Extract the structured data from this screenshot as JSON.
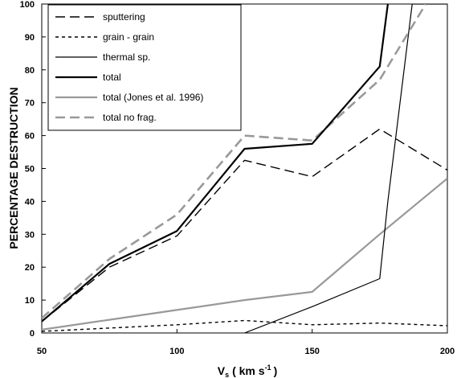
{
  "chart_data": {
    "type": "line",
    "title": "",
    "xlabel": "V",
    "xlabel_sub": "s",
    "xlabel_units": "( km s",
    "xlabel_sup": "-1",
    "xlabel_close": ")",
    "ylabel": "PERCENTAGE DESTRUCTION",
    "xlim": [
      50,
      200
    ],
    "ylim": [
      0,
      100
    ],
    "x_ticks": [
      50,
      100,
      150,
      200
    ],
    "y_ticks": [
      0,
      10,
      20,
      30,
      40,
      50,
      60,
      70,
      80,
      90,
      100
    ],
    "grid": false,
    "legend_position": "top-left",
    "series": [
      {
        "name": "sputtering",
        "color": "#000000",
        "style": "long-dash",
        "width": 1.4,
        "x": [
          50,
          75,
          100,
          125,
          150,
          175,
          200
        ],
        "y": [
          3.5,
          20,
          29.5,
          52.5,
          47.5,
          62,
          49.5
        ]
      },
      {
        "name": "grain - grain",
        "color": "#000000",
        "style": "short-dash",
        "width": 1.4,
        "x": [
          50,
          75,
          100,
          125,
          150,
          175,
          200
        ],
        "y": [
          0.5,
          1.5,
          2.5,
          3.8,
          2.5,
          3,
          2.2
        ]
      },
      {
        "name": "thermal sp.",
        "color": "#000000",
        "style": "solid",
        "width": 1.2,
        "x": [
          125,
          150,
          175,
          178,
          187,
          200
        ],
        "y": [
          0,
          8,
          16.5,
          40,
          100,
          100
        ]
      },
      {
        "name": "total",
        "color": "#000000",
        "style": "solid",
        "width": 2.2,
        "x": [
          50,
          75,
          100,
          125,
          150,
          175,
          178
        ],
        "y": [
          3.5,
          21,
          31,
          56,
          57.5,
          81,
          100
        ]
      },
      {
        "name": "total (Jones et al. 1996)",
        "color": "#999999",
        "style": "solid",
        "width": 2.2,
        "x": [
          50,
          75,
          100,
          125,
          150,
          175,
          200
        ],
        "y": [
          1,
          4,
          7,
          10,
          12.5,
          30,
          47
        ]
      },
      {
        "name": "total no frag.",
        "color": "#999999",
        "style": "long-dash",
        "width": 2.6,
        "x": [
          50,
          75,
          100,
          125,
          150,
          175,
          192
        ],
        "y": [
          4.5,
          22.5,
          36,
          60,
          58.5,
          77,
          100
        ]
      }
    ]
  }
}
